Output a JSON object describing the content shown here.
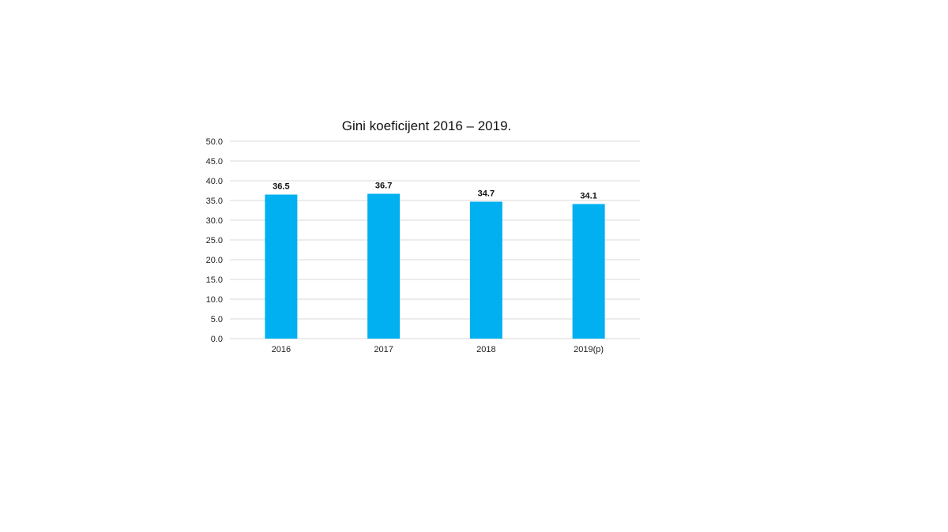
{
  "chart_data": {
    "type": "bar",
    "title": "Gini koeficijent 2016 – 2019.",
    "categories": [
      "2016",
      "2017",
      "2018",
      "2019(p)"
    ],
    "values": [
      36.5,
      36.7,
      34.7,
      34.1
    ],
    "value_labels": [
      "36.5",
      "36.7",
      "34.7",
      "34.1"
    ],
    "y_ticks": [
      "0.0",
      "5.0",
      "10.0",
      "15.0",
      "20.0",
      "25.0",
      "30.0",
      "35.0",
      "40.0",
      "45.0",
      "50.0"
    ],
    "xlabel": "",
    "ylabel": "",
    "ylim": [
      0,
      50
    ],
    "grid": true,
    "legend": "none",
    "bar_color": "#00b0f0",
    "grid_color": "#d9d9d9"
  }
}
